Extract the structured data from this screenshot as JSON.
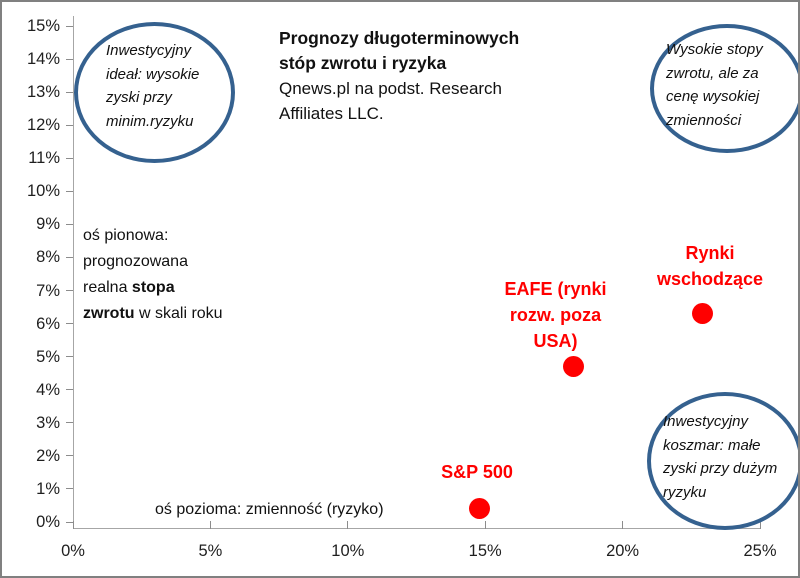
{
  "title": {
    "text": "Prognozy długoterminowych stóp zwrotu i ryzyka",
    "source": "Qnews.pl na podst. Research Affiliates LLC."
  },
  "annotations": {
    "ideal": "Inwestycyjny ideał: wysokie zyski przy minim.ryzyku",
    "high_return": "Wysokie stopy zwrotu, ale za cenę wysokiej zmienności",
    "nightmare": "Inwestycyjny koszmar: małe zyski przy dużym ryzyku",
    "y_axis_note": {
      "pre": "oś pionowa: prognozowana realna ",
      "bold": "stopa zwrotu",
      "post": " w skali roku"
    },
    "x_axis_note": "oś pozioma: zmienność (ryzyko)"
  },
  "chart_data": {
    "type": "scatter",
    "title": "Prognozy długoterminowych stóp zwrotu i ryzyka",
    "subtitle": "Qnews.pl na podst. Research Affiliates LLC.",
    "xlabel": "zmienność (ryzyko)",
    "ylabel": "prognozowana realna stopa zwrotu w skali roku",
    "xlim": [
      0,
      25
    ],
    "ylim": [
      0,
      15
    ],
    "grid": false,
    "legend": false,
    "x_ticks": [
      {
        "v": 0,
        "label": "0%"
      },
      {
        "v": 5,
        "label": "5%"
      },
      {
        "v": 10,
        "label": "10%"
      },
      {
        "v": 15,
        "label": "15%"
      },
      {
        "v": 20,
        "label": "20%"
      },
      {
        "v": 25,
        "label": "25%"
      }
    ],
    "y_ticks": [
      {
        "v": 0,
        "label": "0%"
      },
      {
        "v": 1,
        "label": "1%"
      },
      {
        "v": 2,
        "label": "2%"
      },
      {
        "v": 3,
        "label": "3%"
      },
      {
        "v": 4,
        "label": "4%"
      },
      {
        "v": 5,
        "label": "5%"
      },
      {
        "v": 6,
        "label": "6%"
      },
      {
        "v": 7,
        "label": "7%"
      },
      {
        "v": 8,
        "label": "8%"
      },
      {
        "v": 9,
        "label": "9%"
      },
      {
        "v": 10,
        "label": "10%"
      },
      {
        "v": 11,
        "label": "11%"
      },
      {
        "v": 12,
        "label": "12%"
      },
      {
        "v": 13,
        "label": "13%"
      },
      {
        "v": 14,
        "label": "14%"
      },
      {
        "v": 15,
        "label": "15%"
      }
    ],
    "points": [
      {
        "label": "S&P 500",
        "x": 14.8,
        "y": 0.4
      },
      {
        "label": "EAFE (rynki rozw. poza USA)",
        "x": 18.2,
        "y": 4.7
      },
      {
        "label": "Rynki wschodzące",
        "x": 22.9,
        "y": 6.3
      }
    ],
    "point_color": "#FF0000"
  },
  "colors": {
    "accent_red": "#FF0000",
    "ellipse_blue": "#35618F",
    "axis_gray": "#A6A6A6",
    "frame_gray": "#808080"
  }
}
